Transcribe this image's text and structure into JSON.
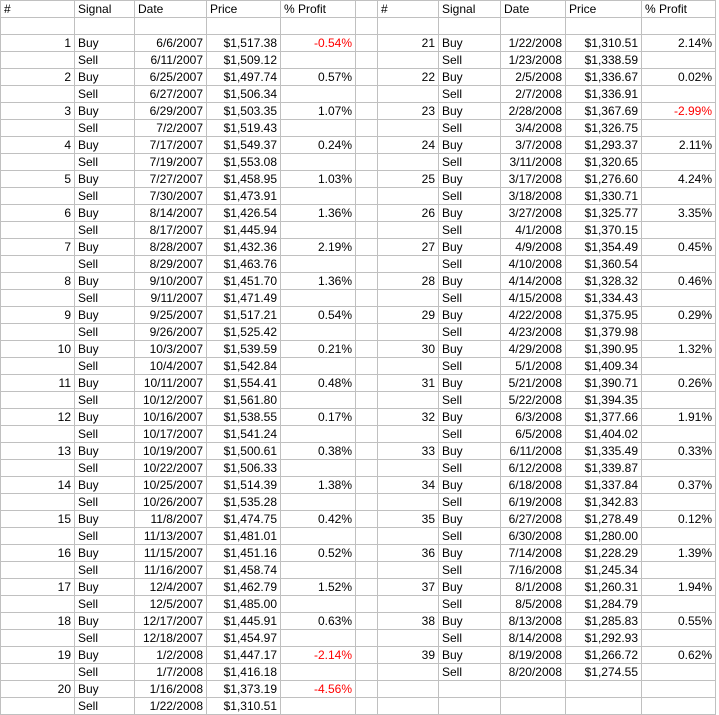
{
  "headers": [
    "#",
    "Signal",
    "Date",
    "Price",
    "% Profit"
  ],
  "colors": {
    "negative": "#ff0000",
    "grid": "#c0c0c0"
  },
  "left": [
    {
      "n": "1",
      "buy_date": "6/6/2007",
      "buy_price": "$1,517.38",
      "profit": "-0.54%",
      "sell_date": "6/11/2007",
      "sell_price": "$1,509.12"
    },
    {
      "n": "2",
      "buy_date": "6/25/2007",
      "buy_price": "$1,497.74",
      "profit": "0.57%",
      "sell_date": "6/27/2007",
      "sell_price": "$1,506.34"
    },
    {
      "n": "3",
      "buy_date": "6/29/2007",
      "buy_price": "$1,503.35",
      "profit": "1.07%",
      "sell_date": "7/2/2007",
      "sell_price": "$1,519.43"
    },
    {
      "n": "4",
      "buy_date": "7/17/2007",
      "buy_price": "$1,549.37",
      "profit": "0.24%",
      "sell_date": "7/19/2007",
      "sell_price": "$1,553.08"
    },
    {
      "n": "5",
      "buy_date": "7/27/2007",
      "buy_price": "$1,458.95",
      "profit": "1.03%",
      "sell_date": "7/30/2007",
      "sell_price": "$1,473.91"
    },
    {
      "n": "6",
      "buy_date": "8/14/2007",
      "buy_price": "$1,426.54",
      "profit": "1.36%",
      "sell_date": "8/17/2007",
      "sell_price": "$1,445.94"
    },
    {
      "n": "7",
      "buy_date": "8/28/2007",
      "buy_price": "$1,432.36",
      "profit": "2.19%",
      "sell_date": "8/29/2007",
      "sell_price": "$1,463.76"
    },
    {
      "n": "8",
      "buy_date": "9/10/2007",
      "buy_price": "$1,451.70",
      "profit": "1.36%",
      "sell_date": "9/11/2007",
      "sell_price": "$1,471.49"
    },
    {
      "n": "9",
      "buy_date": "9/25/2007",
      "buy_price": "$1,517.21",
      "profit": "0.54%",
      "sell_date": "9/26/2007",
      "sell_price": "$1,525.42"
    },
    {
      "n": "10",
      "buy_date": "10/3/2007",
      "buy_price": "$1,539.59",
      "profit": "0.21%",
      "sell_date": "10/4/2007",
      "sell_price": "$1,542.84"
    },
    {
      "n": "11",
      "buy_date": "10/11/2007",
      "buy_price": "$1,554.41",
      "profit": "0.48%",
      "sell_date": "10/12/2007",
      "sell_price": "$1,561.80"
    },
    {
      "n": "12",
      "buy_date": "10/16/2007",
      "buy_price": "$1,538.55",
      "profit": "0.17%",
      "sell_date": "10/17/2007",
      "sell_price": "$1,541.24"
    },
    {
      "n": "13",
      "buy_date": "10/19/2007",
      "buy_price": "$1,500.61",
      "profit": "0.38%",
      "sell_date": "10/22/2007",
      "sell_price": "$1,506.33"
    },
    {
      "n": "14",
      "buy_date": "10/25/2007",
      "buy_price": "$1,514.39",
      "profit": "1.38%",
      "sell_date": "10/26/2007",
      "sell_price": "$1,535.28"
    },
    {
      "n": "15",
      "buy_date": "11/8/2007",
      "buy_price": "$1,474.75",
      "profit": "0.42%",
      "sell_date": "11/13/2007",
      "sell_price": "$1,481.01"
    },
    {
      "n": "16",
      "buy_date": "11/15/2007",
      "buy_price": "$1,451.16",
      "profit": "0.52%",
      "sell_date": "11/16/2007",
      "sell_price": "$1,458.74"
    },
    {
      "n": "17",
      "buy_date": "12/4/2007",
      "buy_price": "$1,462.79",
      "profit": "1.52%",
      "sell_date": "12/5/2007",
      "sell_price": "$1,485.00"
    },
    {
      "n": "18",
      "buy_date": "12/17/2007",
      "buy_price": "$1,445.91",
      "profit": "0.63%",
      "sell_date": "12/18/2007",
      "sell_price": "$1,454.97"
    },
    {
      "n": "19",
      "buy_date": "1/2/2008",
      "buy_price": "$1,447.17",
      "profit": "-2.14%",
      "sell_date": "1/7/2008",
      "sell_price": "$1,416.18"
    },
    {
      "n": "20",
      "buy_date": "1/16/2008",
      "buy_price": "$1,373.19",
      "profit": "-4.56%",
      "sell_date": "1/22/2008",
      "sell_price": "$1,310.51"
    }
  ],
  "right": [
    {
      "n": "21",
      "buy_date": "1/22/2008",
      "buy_price": "$1,310.51",
      "profit": "2.14%",
      "sell_date": "1/23/2008",
      "sell_price": "$1,338.59"
    },
    {
      "n": "22",
      "buy_date": "2/5/2008",
      "buy_price": "$1,336.67",
      "profit": "0.02%",
      "sell_date": "2/7/2008",
      "sell_price": "$1,336.91"
    },
    {
      "n": "23",
      "buy_date": "2/28/2008",
      "buy_price": "$1,367.69",
      "profit": "-2.99%",
      "sell_date": "3/4/2008",
      "sell_price": "$1,326.75"
    },
    {
      "n": "24",
      "buy_date": "3/7/2008",
      "buy_price": "$1,293.37",
      "profit": "2.11%",
      "sell_date": "3/11/2008",
      "sell_price": "$1,320.65"
    },
    {
      "n": "25",
      "buy_date": "3/17/2008",
      "buy_price": "$1,276.60",
      "profit": "4.24%",
      "sell_date": "3/18/2008",
      "sell_price": "$1,330.71"
    },
    {
      "n": "26",
      "buy_date": "3/27/2008",
      "buy_price": "$1,325.77",
      "profit": "3.35%",
      "sell_date": "4/1/2008",
      "sell_price": "$1,370.15"
    },
    {
      "n": "27",
      "buy_date": "4/9/2008",
      "buy_price": "$1,354.49",
      "profit": "0.45%",
      "sell_date": "4/10/2008",
      "sell_price": "$1,360.54"
    },
    {
      "n": "28",
      "buy_date": "4/14/2008",
      "buy_price": "$1,328.32",
      "profit": "0.46%",
      "sell_date": "4/15/2008",
      "sell_price": "$1,334.43"
    },
    {
      "n": "29",
      "buy_date": "4/22/2008",
      "buy_price": "$1,375.95",
      "profit": "0.29%",
      "sell_date": "4/23/2008",
      "sell_price": "$1,379.98"
    },
    {
      "n": "30",
      "buy_date": "4/29/2008",
      "buy_price": "$1,390.95",
      "profit": "1.32%",
      "sell_date": "5/1/2008",
      "sell_price": "$1,409.34"
    },
    {
      "n": "31",
      "buy_date": "5/21/2008",
      "buy_price": "$1,390.71",
      "profit": "0.26%",
      "sell_date": "5/22/2008",
      "sell_price": "$1,394.35"
    },
    {
      "n": "32",
      "buy_date": "6/3/2008",
      "buy_price": "$1,377.66",
      "profit": "1.91%",
      "sell_date": "6/5/2008",
      "sell_price": "$1,404.02"
    },
    {
      "n": "33",
      "buy_date": "6/11/2008",
      "buy_price": "$1,335.49",
      "profit": "0.33%",
      "sell_date": "6/12/2008",
      "sell_price": "$1,339.87"
    },
    {
      "n": "34",
      "buy_date": "6/18/2008",
      "buy_price": "$1,337.84",
      "profit": "0.37%",
      "sell_date": "6/19/2008",
      "sell_price": "$1,342.83"
    },
    {
      "n": "35",
      "buy_date": "6/27/2008",
      "buy_price": "$1,278.49",
      "profit": "0.12%",
      "sell_date": "6/30/2008",
      "sell_price": "$1,280.00"
    },
    {
      "n": "36",
      "buy_date": "7/14/2008",
      "buy_price": "$1,228.29",
      "profit": "1.39%",
      "sell_date": "7/16/2008",
      "sell_price": "$1,245.34"
    },
    {
      "n": "37",
      "buy_date": "8/1/2008",
      "buy_price": "$1,260.31",
      "profit": "1.94%",
      "sell_date": "8/5/2008",
      "sell_price": "$1,284.79"
    },
    {
      "n": "38",
      "buy_date": "8/13/2008",
      "buy_price": "$1,285.83",
      "profit": "0.55%",
      "sell_date": "8/14/2008",
      "sell_price": "$1,292.93"
    },
    {
      "n": "39",
      "buy_date": "8/19/2008",
      "buy_price": "$1,266.72",
      "profit": "0.62%",
      "sell_date": "8/20/2008",
      "sell_price": "$1,274.55"
    }
  ],
  "signals": {
    "buy": "Buy",
    "sell": "Sell"
  }
}
